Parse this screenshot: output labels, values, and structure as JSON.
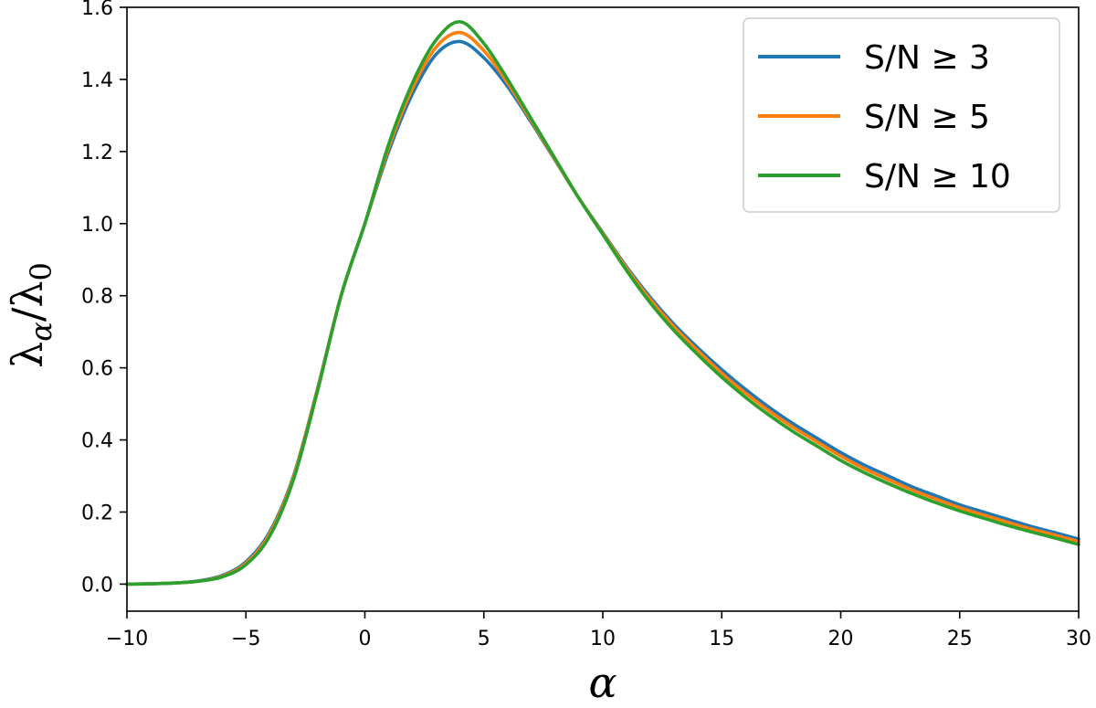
{
  "chart_data": {
    "type": "line",
    "xlabel": "α",
    "ylabel": "λα/λ0",
    "ylabel_parts": {
      "main": "λ",
      "sub1": "α",
      "mid": "/λ",
      "sub2": "0"
    },
    "xlim": [
      -10,
      30
    ],
    "ylim": [
      -0.075,
      1.6
    ],
    "xticks": [
      -10,
      -5,
      0,
      5,
      10,
      15,
      20,
      25,
      30
    ],
    "xtick_labels": [
      "−10",
      "−5",
      "0",
      "5",
      "10",
      "15",
      "20",
      "25",
      "30"
    ],
    "yticks": [
      0.0,
      0.2,
      0.4,
      0.6,
      0.8,
      1.0,
      1.2,
      1.4,
      1.6
    ],
    "ytick_labels": [
      "0.0",
      "0.2",
      "0.4",
      "0.6",
      "0.8",
      "1.0",
      "1.2",
      "1.4",
      "1.6"
    ],
    "grid": false,
    "legend_position": "top-right",
    "x": [
      -10,
      -9,
      -8,
      -7,
      -6,
      -5,
      -4,
      -3,
      -2,
      -1,
      0,
      1,
      2,
      3,
      4,
      5,
      6,
      7,
      8,
      9,
      10,
      11,
      12,
      13,
      14,
      15,
      16,
      17,
      18,
      19,
      20,
      21,
      22,
      23,
      24,
      25,
      26,
      27,
      28,
      29,
      30
    ],
    "series": [
      {
        "name": "S/N ≥ 3",
        "color": "#1f77b4",
        "values": [
          0.0,
          0.001,
          0.003,
          0.009,
          0.024,
          0.062,
          0.145,
          0.3,
          0.54,
          0.8,
          1.0,
          1.2,
          1.36,
          1.47,
          1.505,
          1.46,
          1.38,
          1.28,
          1.175,
          1.07,
          0.975,
          0.88,
          0.795,
          0.72,
          0.655,
          0.595,
          0.54,
          0.49,
          0.445,
          0.405,
          0.365,
          0.33,
          0.3,
          0.27,
          0.245,
          0.22,
          0.2,
          0.18,
          0.16,
          0.143,
          0.125
        ]
      },
      {
        "name": "S/N ≥ 5",
        "color": "#ff7f0e",
        "values": [
          0.0,
          0.001,
          0.003,
          0.008,
          0.022,
          0.058,
          0.14,
          0.296,
          0.538,
          0.8,
          1.0,
          1.21,
          1.375,
          1.49,
          1.53,
          1.48,
          1.39,
          1.285,
          1.177,
          1.07,
          0.973,
          0.876,
          0.789,
          0.713,
          0.647,
          0.585,
          0.53,
          0.48,
          0.435,
          0.395,
          0.355,
          0.32,
          0.29,
          0.261,
          0.236,
          0.212,
          0.192,
          0.172,
          0.153,
          0.136,
          0.118
        ]
      },
      {
        "name": "S/N ≥ 10",
        "color": "#2ca02c",
        "values": [
          0.0,
          0.001,
          0.003,
          0.008,
          0.02,
          0.054,
          0.133,
          0.29,
          0.533,
          0.8,
          1.0,
          1.22,
          1.39,
          1.51,
          1.56,
          1.5,
          1.4,
          1.29,
          1.18,
          1.07,
          0.97,
          0.87,
          0.78,
          0.703,
          0.636,
          0.574,
          0.518,
          0.468,
          0.423,
          0.383,
          0.343,
          0.309,
          0.279,
          0.251,
          0.226,
          0.203,
          0.183,
          0.163,
          0.145,
          0.128,
          0.11
        ]
      }
    ]
  }
}
